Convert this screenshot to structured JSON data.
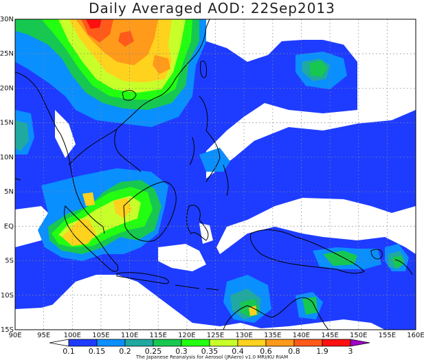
{
  "title": "Daily Averaged AOD: 22Sep2013",
  "map": {
    "lon_range": [
      90,
      160
    ],
    "lat_range": [
      -15,
      30
    ],
    "lon_ticks": [
      "90E",
      "95E",
      "100E",
      "105E",
      "110E",
      "115E",
      "120E",
      "125E",
      "130E",
      "135E",
      "140E",
      "145E",
      "150E",
      "155E",
      "160E"
    ],
    "lat_ticks": [
      "30N",
      "25N",
      "20N",
      "15N",
      "10N",
      "5N",
      "EQ",
      "5S",
      "10S",
      "15S"
    ],
    "grid": "dotted"
  },
  "colorbar": {
    "labels": [
      "0.1",
      "0.15",
      "0.2",
      "0.25",
      "0.3",
      "0.35",
      "0.4",
      "0.6",
      "0.8",
      "1.9",
      "3"
    ],
    "colors": [
      "#ffffff",
      "#1e3cff",
      "#0a8fff",
      "#1fa9a0",
      "#16c850",
      "#22ff10",
      "#c8ff2a",
      "#ffd21e",
      "#ff9a1a",
      "#ff5a1a",
      "#ff1010",
      "#a000c8"
    ]
  },
  "credit": "The Japanese Reanalysis for Aerosol (JRAero) v1.0 MRI/KU RIAM"
}
